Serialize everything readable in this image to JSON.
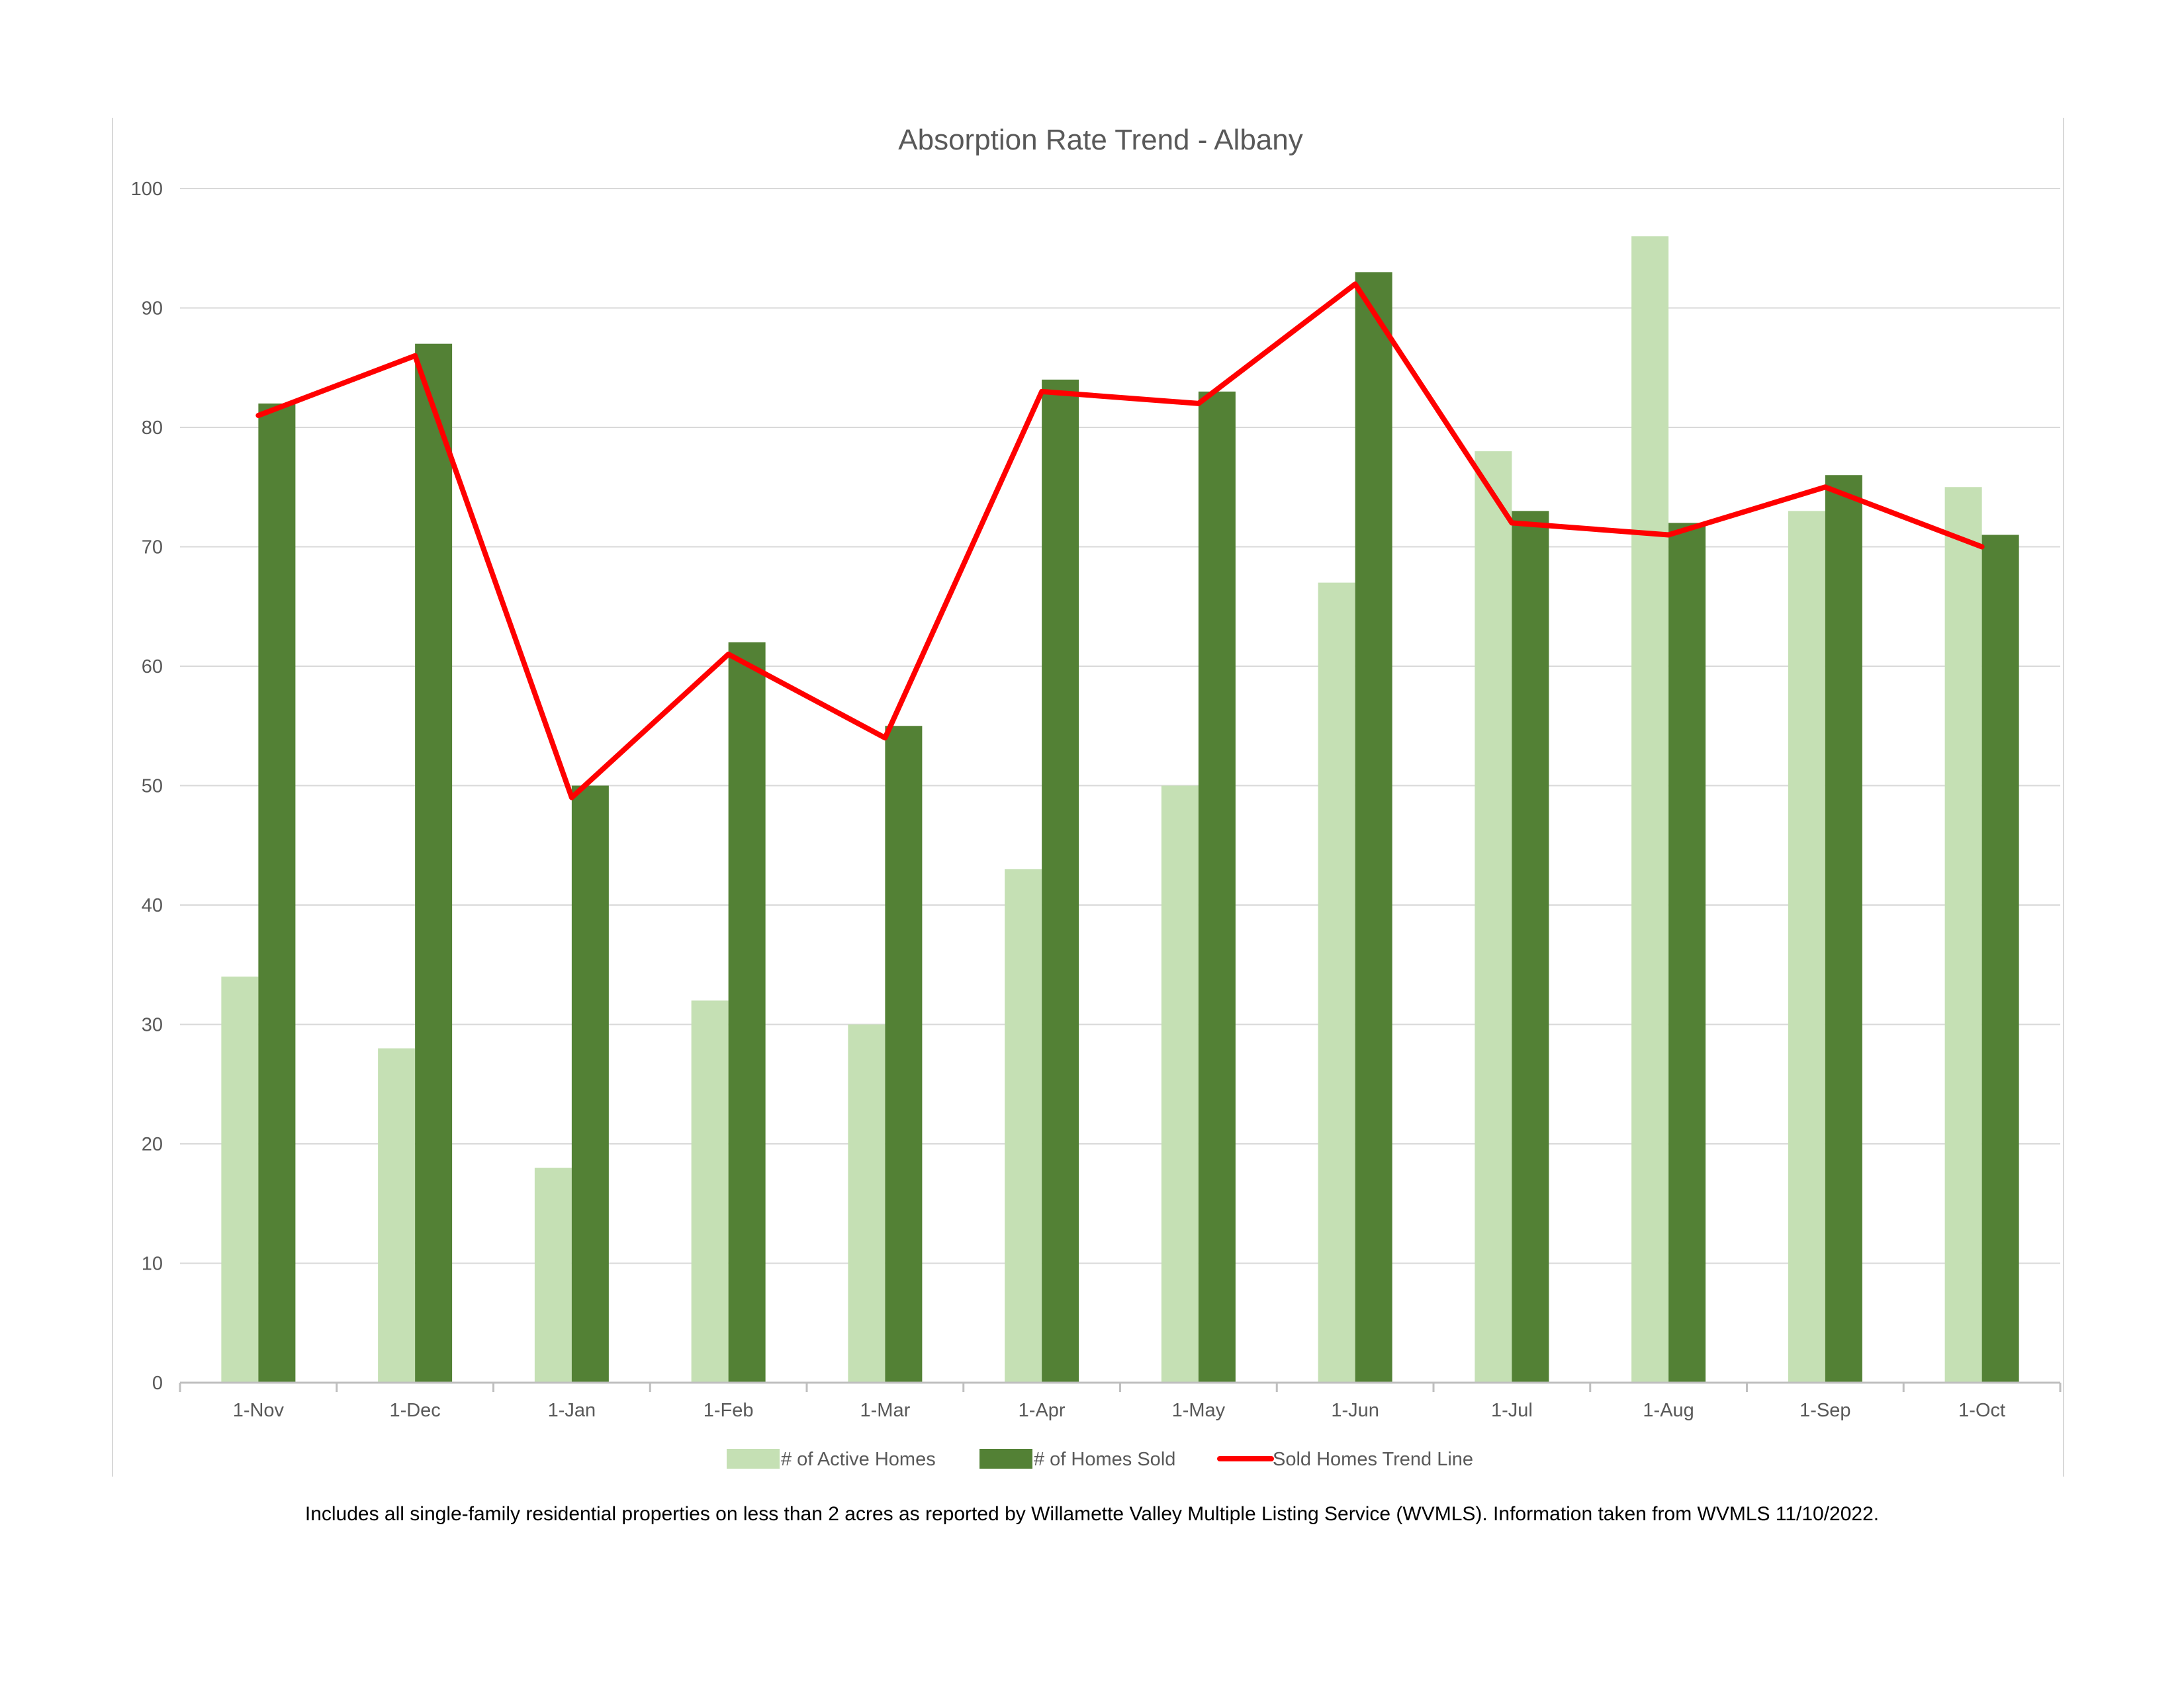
{
  "chart_data": {
    "type": "bar",
    "title": "Absorption Rate Trend - Albany",
    "categories": [
      "1-Nov",
      "1-Dec",
      "1-Jan",
      "1-Feb",
      "1-Mar",
      "1-Apr",
      "1-May",
      "1-Jun",
      "1-Jul",
      "1-Aug",
      "1-Sep",
      "1-Oct"
    ],
    "series": [
      {
        "name": "# of Active Homes",
        "kind": "bar",
        "color": "#c5e0b4",
        "values": [
          34,
          28,
          18,
          32,
          30,
          43,
          50,
          67,
          78,
          96,
          73,
          75
        ]
      },
      {
        "name": "# of Homes Sold",
        "kind": "bar",
        "color": "#538135",
        "values": [
          82,
          87,
          50,
          62,
          55,
          84,
          83,
          93,
          73,
          72,
          76,
          71
        ]
      },
      {
        "name": "Sold Homes Trend Line",
        "kind": "line",
        "color": "#ff0000",
        "values": [
          81,
          86,
          49,
          61,
          54,
          83,
          82,
          92,
          72,
          71,
          75,
          70
        ]
      }
    ],
    "ylim": [
      0,
      100
    ],
    "yticks": [
      0,
      10,
      20,
      30,
      40,
      50,
      60,
      70,
      80,
      90,
      100
    ],
    "xlabel": "",
    "ylabel": "",
    "grid": true,
    "legend_position": "bottom"
  },
  "footnote": "Includes all single-family residential properties on less than 2 acres as reported by Willamette Valley Multiple Listing Service (WVMLS). Information taken from WVMLS 11/10/2022."
}
